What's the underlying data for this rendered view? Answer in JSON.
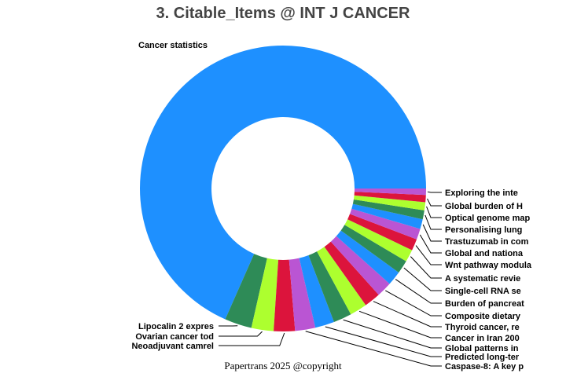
{
  "title": "3. Citable_Items @ INT J CANCER",
  "footer": "Papertrans 2025 @copyright",
  "colors": [
    "#1e90ff",
    "#2e8b57",
    "#adff2f",
    "#dc143c",
    "#ba55d3"
  ],
  "chart_data": {
    "type": "pie",
    "hole": 0.5,
    "title": "3. Citable_Items @ INT J CANCER",
    "direction": "counterclockwise",
    "start_angle_deg": 0,
    "labels": [
      "Cancer statistics",
      "Lipocalin 2 expres",
      "Ovarian cancer tod",
      "Neoadjuvant camrel",
      "Caspase-8: A key p",
      "Predicted long-ter",
      "Global patterns in",
      "Cancer in Iran 200",
      "Thyroid cancer, re",
      "Composite dietary",
      "Burden of pancreat",
      "Single-cell RNA se",
      "A systematic revie",
      "Wnt pathway modula",
      "Global and nationa",
      "Trastuzumab in com",
      "Personalising lung",
      "Optical genome map",
      "Global burden of H",
      "Exploring the inte"
    ],
    "values": [
      245.5,
      11,
      9,
      8.6,
      8.2,
      7.8,
      7.4,
      7,
      6.6,
      6.2,
      5.8,
      5.4,
      5,
      4.7,
      4.4,
      4,
      3.6,
      3.3,
      2.9,
      2.6
    ],
    "slice_colors": [
      "#1e90ff",
      "#2e8b57",
      "#adff2f",
      "#dc143c",
      "#ba55d3",
      "#1e90ff",
      "#2e8b57",
      "#adff2f",
      "#dc143c",
      "#ba55d3",
      "#1e90ff",
      "#2e8b57",
      "#adff2f",
      "#dc143c",
      "#ba55d3",
      "#1e90ff",
      "#2e8b57",
      "#adff2f",
      "#dc143c",
      "#ba55d3"
    ],
    "legend": "none",
    "text_position": "outside"
  }
}
